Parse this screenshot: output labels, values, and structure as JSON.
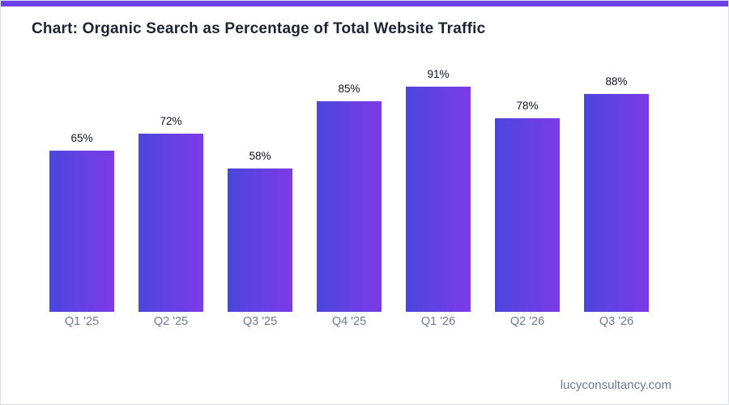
{
  "page": {
    "title": "Chart: Organic Search as Percentage of Total Website Traffic",
    "watermark": "lucyconsultancy.com",
    "accent_color": "#6b40e4",
    "background_color": "#ffffff",
    "border_color": "#dce3ef",
    "title_color": "#1c2433"
  },
  "chart_data": {
    "type": "bar",
    "title": "Chart: Organic Search as Percentage of Total Website Traffic",
    "categories": [
      "Q1 '25",
      "Q2 '25",
      "Q3 '25",
      "Q4 '25",
      "Q1 '26",
      "Q2 '26",
      "Q3 '26"
    ],
    "values": [
      65,
      72,
      58,
      85,
      91,
      78,
      88
    ],
    "value_labels": [
      "65%",
      "72%",
      "58%",
      "85%",
      "91%",
      "78%",
      "88%"
    ],
    "xlabel": "",
    "ylabel": "",
    "ylim": [
      0,
      100
    ],
    "grid": false,
    "legend": false,
    "bar_gradient_left": "#4b46de",
    "bar_gradient_right": "#7d3be8",
    "value_label_color": "#10131f",
    "axis_label_color": "#6b7a94"
  }
}
